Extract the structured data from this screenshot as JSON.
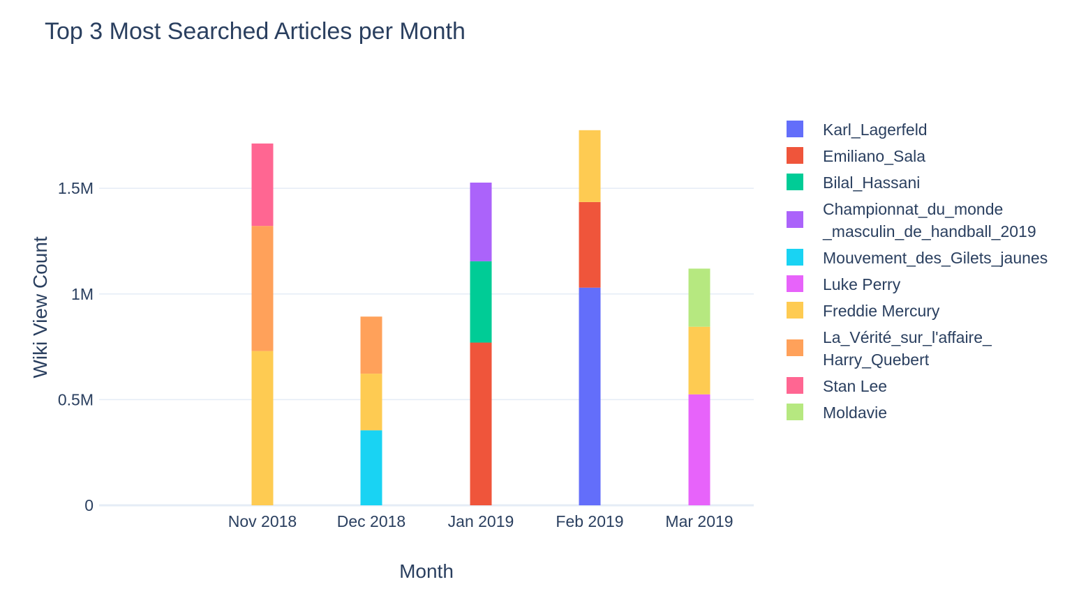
{
  "chart_data": {
    "type": "bar",
    "barmode": "stack",
    "title": "Top 3 Most Searched Articles per Month",
    "xlabel": "Month",
    "ylabel": "Wiki View Count",
    "categories": [
      "Nov 2018",
      "Dec 2018",
      "Jan 2019",
      "Feb 2019",
      "Mar 2019"
    ],
    "x_tick_labels": [
      "Nov 2018",
      "Dec 2018",
      "Jan 2019",
      "Feb 2019",
      "Mar 2019"
    ],
    "y_ticks": [
      0,
      500000,
      1000000,
      1500000
    ],
    "y_tick_labels": [
      "0",
      "0.5M",
      "1M",
      "1.5M"
    ],
    "ylim": [
      0,
      1870000
    ],
    "legend_position": "right",
    "grid": true,
    "series": [
      {
        "name": "Karl_Lagerfeld",
        "color": "#636efa",
        "values": [
          null,
          null,
          null,
          1030000,
          null
        ]
      },
      {
        "name": "Emiliano_Sala",
        "color": "#ef553b",
        "values": [
          null,
          null,
          770000,
          405000,
          null
        ]
      },
      {
        "name": "Bilal_Hassani",
        "color": "#00cc96",
        "values": [
          null,
          null,
          385000,
          null,
          null
        ]
      },
      {
        "name": "Championnat_du_monde _masculin_de_handball_2019",
        "legend_lines": [
          "Championnat_du_monde",
          "_masculin_de_handball_2019"
        ],
        "color": "#ab63fa",
        "values": [
          null,
          null,
          372000,
          null,
          null
        ]
      },
      {
        "name": "Mouvement_des_Gilets_jaunes",
        "color": "#19d3f3",
        "values": [
          null,
          355000,
          null,
          null,
          null
        ]
      },
      {
        "name": "Luke Perry",
        "color": "#e763fa",
        "values": [
          null,
          null,
          null,
          null,
          525000
        ]
      },
      {
        "name": "Freddie Mercury",
        "color": "#fecb52",
        "values": [
          730000,
          268000,
          null,
          340000,
          320000
        ]
      },
      {
        "name": "La_Vérité_sur_l'affaire_ Harry_Quebert",
        "legend_lines": [
          "La_Vérité_sur_l'affaire_",
          "Harry_Quebert"
        ],
        "color": "#ffa15a",
        "values": [
          592000,
          270000,
          null,
          null,
          null
        ]
      },
      {
        "name": "Stan Lee",
        "color": "#ff6692",
        "values": [
          390000,
          null,
          null,
          null,
          null
        ]
      },
      {
        "name": "Moldavie",
        "color": "#b6e880",
        "values": [
          null,
          null,
          null,
          null,
          275000
        ]
      }
    ]
  }
}
